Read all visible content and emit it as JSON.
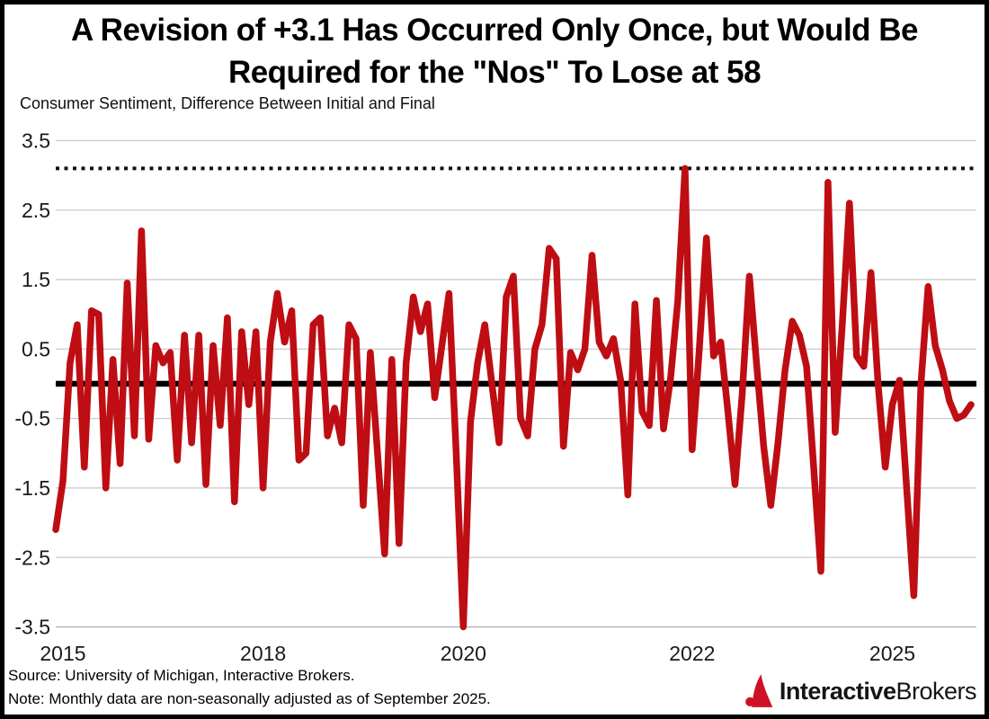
{
  "title": {
    "line1": "A Revision of +3.1 Has Occurred Only Once, but Would Be",
    "line2": "Required for the \"Nos\" To Lose at 58"
  },
  "subtitle": "Consumer Sentiment, Difference Between Initial and Final",
  "footer": {
    "source": "Source: University of Michigan, Interactive Brokers.",
    "note": "Note: Monthly data are non-seasonally adjusted as of September 2025."
  },
  "logo": {
    "bold": "Interactive",
    "regular": "Brokers"
  },
  "colors": {
    "line": "#BE0E13",
    "zero_line": "#000000",
    "dotted_line": "#111111",
    "gridline": "#cccccc",
    "axis_line": "#b3b3b3",
    "tick_text": "#1a1a1a",
    "logo_red": "#CE1126"
  },
  "chart_data": {
    "type": "line",
    "title": "A Revision of +3.1 Has Occurred Only Once, but Would Be Required for the \"Nos\" To Lose at 58",
    "series_label": "Consumer Sentiment, Difference Between Initial and Final",
    "frequency": "monthly",
    "x_start": "Jan 2015",
    "x_end": "Sep 2025",
    "ylim": [
      -3.5,
      3.5
    ],
    "grid": true,
    "legend": "none",
    "y_tick_labels": [
      "3.5",
      "2.5",
      "1.5",
      "0.5",
      "-0.5",
      "-1.5",
      "-2.5",
      "-3.5"
    ],
    "x_tick_labels": [
      {
        "label": "2015",
        "month_index": 1
      },
      {
        "label": "2018",
        "month_index": 29
      },
      {
        "label": "2020",
        "month_index": 57
      },
      {
        "label": "2022",
        "month_index": 89
      },
      {
        "label": "2025",
        "month_index": 117
      }
    ],
    "reference_lines": [
      {
        "value": 3.1,
        "style": "dotted"
      },
      {
        "value": 0.0,
        "style": "solid-thick"
      }
    ],
    "values": [
      -2.1,
      -1.4,
      0.3,
      0.85,
      -1.2,
      1.05,
      1.0,
      -1.5,
      0.35,
      -1.15,
      1.45,
      -0.75,
      2.2,
      -0.8,
      0.55,
      0.3,
      0.45,
      -1.1,
      0.7,
      -0.85,
      0.7,
      -1.45,
      0.55,
      -0.6,
      0.95,
      -1.7,
      0.75,
      -0.3,
      0.75,
      -1.5,
      0.6,
      1.3,
      0.6,
      1.05,
      -1.1,
      -1.0,
      0.85,
      0.95,
      -0.75,
      -0.35,
      -0.85,
      0.85,
      0.65,
      -1.75,
      0.45,
      -1.0,
      -2.45,
      0.35,
      -2.3,
      0.3,
      1.25,
      0.75,
      1.15,
      -0.2,
      0.55,
      1.3,
      -1.0,
      -3.5,
      -0.55,
      0.3,
      0.85,
      0.0,
      -0.85,
      1.25,
      1.55,
      -0.5,
      -0.75,
      0.5,
      0.85,
      1.95,
      1.8,
      -0.9,
      0.45,
      0.2,
      0.5,
      1.85,
      0.6,
      0.4,
      0.65,
      0.05,
      -1.6,
      1.15,
      -0.4,
      -0.6,
      1.2,
      -0.65,
      0.1,
      1.2,
      3.1,
      -0.95,
      0.5,
      2.1,
      0.4,
      0.6,
      -0.4,
      -1.45,
      -0.15,
      1.55,
      0.3,
      -0.9,
      -1.75,
      -0.85,
      0.2,
      0.9,
      0.7,
      0.25,
      -1.2,
      -2.7,
      2.9,
      -0.7,
      0.85,
      2.6,
      0.4,
      0.25,
      1.6,
      0.0,
      -1.2,
      -0.3,
      0.05,
      -1.5,
      -3.05,
      0.0,
      1.4,
      0.55,
      0.2,
      -0.25,
      -0.5,
      -0.45,
      -0.3
    ]
  }
}
